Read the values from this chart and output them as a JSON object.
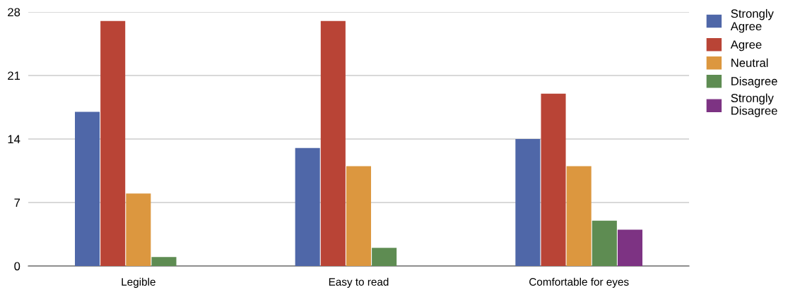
{
  "chart_data": {
    "type": "bar",
    "categories": [
      "Legible",
      "Easy to read",
      "Comfortable for eyes"
    ],
    "series": [
      {
        "name": "Strongly Agree",
        "color": "#4f67a8",
        "values": [
          17,
          13,
          14
        ]
      },
      {
        "name": "Agree",
        "color": "#b94436",
        "values": [
          27,
          27,
          19
        ]
      },
      {
        "name": "Neutral",
        "color": "#dc973f",
        "values": [
          8,
          11,
          11
        ]
      },
      {
        "name": "Disagree",
        "color": "#5e8c52",
        "values": [
          1,
          2,
          5
        ]
      },
      {
        "name": "Strongly Disagree",
        "color": "#7d3383",
        "values": [
          0,
          0,
          4
        ]
      }
    ],
    "ylim": [
      0,
      28
    ],
    "yticks": [
      0,
      7,
      14,
      21,
      28
    ],
    "grid": "y",
    "legend": "top right"
  }
}
